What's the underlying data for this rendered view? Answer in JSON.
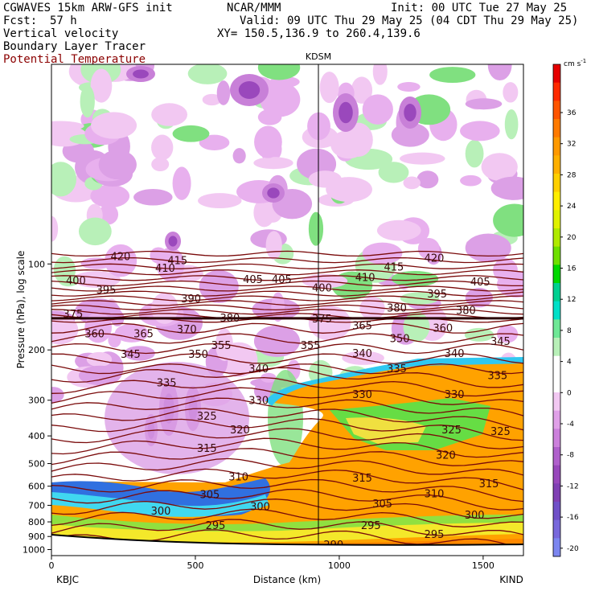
{
  "header": {
    "model": "CGWAVES 15km ARW-GFS init",
    "org": "NCAR/MMM",
    "init": "Init: 00 UTC Tue 27 May 25",
    "fcst_label": "Fcst:",
    "fcst_value": "57 h",
    "valid": "Valid: 09 UTC Thu 29 May 25 (04 CDT Thu 29 May 25)",
    "field1": "Vertical velocity",
    "xy": "XY= 150.5,136.9 to 260.4,139.6",
    "field2": "Boundary Layer Tracer",
    "field3": "Potential Temperature"
  },
  "chart_data": {
    "type": "cross-section",
    "xlabel": "Distance (km)",
    "ylabel": "Pressure (hPa), log scale",
    "x_ticks": [
      "0",
      "500",
      "1000",
      "1500"
    ],
    "x_tick_values": [
      0,
      500,
      1000,
      1500
    ],
    "xlim": [
      0,
      1640
    ],
    "y_ticks": [
      "100",
      "200",
      "300",
      "400",
      "500",
      "600",
      "700",
      "800",
      "900",
      "1000"
    ],
    "y_tick_values": [
      100,
      200,
      300,
      400,
      500,
      600,
      700,
      800,
      900,
      1000
    ],
    "ylim": [
      1050,
      20
    ],
    "y_scale": "log",
    "left_endpoint": "KBJC",
    "right_endpoint": "KIND",
    "station_marker": {
      "label": "KDSM",
      "x": 930
    },
    "colorbar": {
      "unit": "cm s",
      "unit_exp": "-1",
      "ticks": [
        "36",
        "32",
        "28",
        "24",
        "20",
        "16",
        "12",
        "8",
        "4",
        "0",
        "-4",
        "-8",
        "-12",
        "-16",
        "-20"
      ],
      "colors": [
        "#e60000",
        "#ff2a00",
        "#ff5500",
        "#ff7a00",
        "#ff9900",
        "#ffb000",
        "#ffd000",
        "#ffee00",
        "#e0f200",
        "#b0ea00",
        "#6ee000",
        "#00d800",
        "#00d090",
        "#00e0c8",
        "#6fe896",
        "#b8f0b8",
        "#ffffff",
        "#ffffff",
        "#f2c8f2",
        "#e0a0e8",
        "#cc80dc",
        "#b060cc",
        "#9848bc",
        "#8040b4",
        "#7050c8",
        "#7868dc",
        "#7c86f0"
      ]
    },
    "theta_labels": [
      {
        "t": "420",
        "x": 240,
        "p": 94
      },
      {
        "t": "410",
        "x": 395,
        "p": 103
      },
      {
        "t": "415",
        "x": 438,
        "p": 97
      },
      {
        "t": "400",
        "x": 85,
        "p": 114
      },
      {
        "t": "395",
        "x": 190,
        "p": 123
      },
      {
        "t": "390",
        "x": 485,
        "p": 132
      },
      {
        "t": "405",
        "x": 700,
        "p": 113
      },
      {
        "t": "405",
        "x": 800,
        "p": 113
      },
      {
        "t": "400",
        "x": 940,
        "p": 121
      },
      {
        "t": "410",
        "x": 1090,
        "p": 111
      },
      {
        "t": "415",
        "x": 1190,
        "p": 102
      },
      {
        "t": "420",
        "x": 1330,
        "p": 95
      },
      {
        "t": "395",
        "x": 1340,
        "p": 127
      },
      {
        "t": "405",
        "x": 1490,
        "p": 115
      },
      {
        "t": "380",
        "x": 1200,
        "p": 142
      },
      {
        "t": "380",
        "x": 1440,
        "p": 145
      },
      {
        "t": "375",
        "x": 75,
        "p": 149
      },
      {
        "t": "380",
        "x": 620,
        "p": 154
      },
      {
        "t": "375",
        "x": 940,
        "p": 155
      },
      {
        "t": "365",
        "x": 1080,
        "p": 164
      },
      {
        "t": "360",
        "x": 1360,
        "p": 167
      },
      {
        "t": "360",
        "x": 150,
        "p": 175
      },
      {
        "t": "365",
        "x": 320,
        "p": 175
      },
      {
        "t": "370",
        "x": 470,
        "p": 169
      },
      {
        "t": "355",
        "x": 590,
        "p": 192
      },
      {
        "t": "355",
        "x": 900,
        "p": 192
      },
      {
        "t": "350",
        "x": 1210,
        "p": 182
      },
      {
        "t": "340",
        "x": 1080,
        "p": 205
      },
      {
        "t": "340",
        "x": 1400,
        "p": 205
      },
      {
        "t": "345",
        "x": 1560,
        "p": 186
      },
      {
        "t": "345",
        "x": 275,
        "p": 206
      },
      {
        "t": "350",
        "x": 510,
        "p": 206
      },
      {
        "t": "340",
        "x": 720,
        "p": 232
      },
      {
        "t": "335",
        "x": 400,
        "p": 260
      },
      {
        "t": "335",
        "x": 1200,
        "p": 232
      },
      {
        "t": "335",
        "x": 1550,
        "p": 245
      },
      {
        "t": "330",
        "x": 720,
        "p": 300
      },
      {
        "t": "330",
        "x": 1080,
        "p": 285
      },
      {
        "t": "330",
        "x": 1400,
        "p": 285
      },
      {
        "t": "325",
        "x": 540,
        "p": 340
      },
      {
        "t": "325",
        "x": 1390,
        "p": 380
      },
      {
        "t": "325",
        "x": 1560,
        "p": 385
      },
      {
        "t": "320",
        "x": 655,
        "p": 380
      },
      {
        "t": "320",
        "x": 1370,
        "p": 465
      },
      {
        "t": "315",
        "x": 540,
        "p": 440
      },
      {
        "t": "315",
        "x": 1080,
        "p": 560
      },
      {
        "t": "315",
        "x": 1520,
        "p": 585
      },
      {
        "t": "310",
        "x": 650,
        "p": 555
      },
      {
        "t": "310",
        "x": 1330,
        "p": 635
      },
      {
        "t": "305",
        "x": 550,
        "p": 640
      },
      {
        "t": "305",
        "x": 1150,
        "p": 690
      },
      {
        "t": "300",
        "x": 725,
        "p": 705
      },
      {
        "t": "300",
        "x": 1470,
        "p": 755
      },
      {
        "t": "300",
        "x": 380,
        "p": 730
      },
      {
        "t": "295",
        "x": 570,
        "p": 820
      },
      {
        "t": "295",
        "x": 1110,
        "p": 820
      },
      {
        "t": "295",
        "x": 1330,
        "p": 880
      },
      {
        "t": "290",
        "x": 980,
        "p": 960
      }
    ]
  }
}
